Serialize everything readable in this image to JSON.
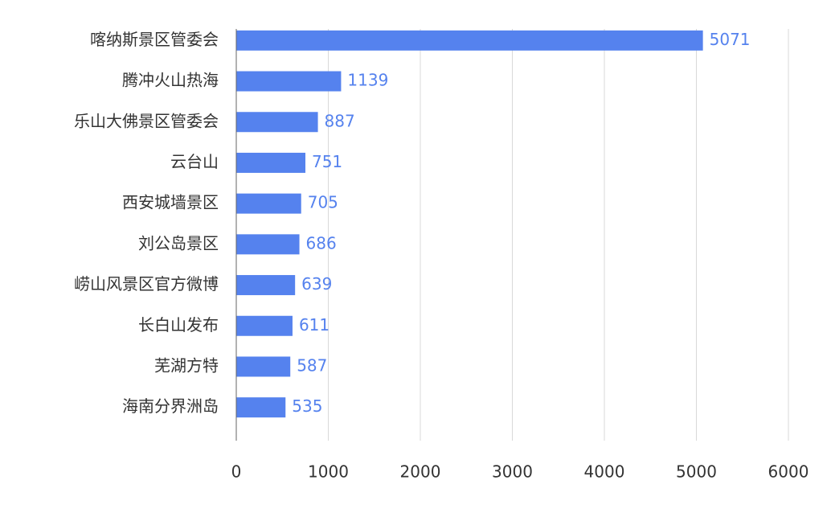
{
  "chart_data": {
    "type": "bar",
    "orientation": "horizontal",
    "categories": [
      "喀纳斯景区管委会",
      "腾冲火山热海",
      "乐山大佛景区管委会",
      "云台山",
      "西安城墙景区",
      "刘公岛景区",
      "崂山风景区官方微博",
      "长白山发布",
      "芜湖方特",
      "海南分界洲岛"
    ],
    "values": [
      5071,
      1139,
      887,
      751,
      705,
      686,
      639,
      611,
      587,
      535
    ],
    "xlim": [
      0,
      6000
    ],
    "xticks": [
      0,
      1000,
      2000,
      3000,
      4000,
      5000,
      6000
    ],
    "grid": true,
    "legend": "none",
    "colors": {
      "bar": "#5582EE",
      "data_label": "#5582EE",
      "grid": "#D9D9D9",
      "axis": "#666666"
    }
  }
}
